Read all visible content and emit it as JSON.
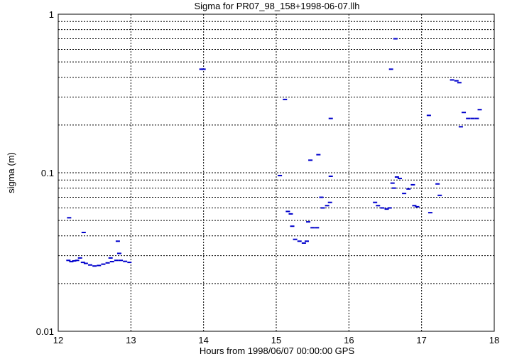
{
  "chart_data": {
    "type": "scatter",
    "title": "Sigma for PR07_98_158+1998-06-07.llh",
    "xlabel": "Hours from 1998/06/07 00:00:00 GPS",
    "ylabel": "sigma (m)",
    "xlim": [
      12,
      18
    ],
    "ylim": [
      0.01,
      1
    ],
    "yscale": "log",
    "grid": true,
    "x_ticks": [
      "12",
      "13",
      "14",
      "15",
      "16",
      "17",
      "18"
    ],
    "y_ticks": [
      "0.01",
      "0.1",
      "1"
    ],
    "colors": {
      "series": "#0000cc",
      "grid": "#000000",
      "axes": "#000000"
    },
    "series": [
      {
        "points": [
          [
            12.14,
            0.028
          ],
          [
            12.18,
            0.0275
          ],
          [
            12.22,
            0.0278
          ],
          [
            12.26,
            0.028
          ],
          [
            12.3,
            0.029
          ],
          [
            12.34,
            0.0272
          ],
          [
            12.38,
            0.0268
          ],
          [
            12.44,
            0.0262
          ],
          [
            12.5,
            0.0258
          ],
          [
            12.56,
            0.026
          ],
          [
            12.62,
            0.0265
          ],
          [
            12.68,
            0.027
          ],
          [
            12.74,
            0.0275
          ],
          [
            12.8,
            0.028
          ],
          [
            12.86,
            0.028
          ],
          [
            12.92,
            0.0276
          ],
          [
            12.98,
            0.0272
          ],
          [
            12.35,
            0.042
          ],
          [
            12.15,
            0.052
          ],
          [
            12.82,
            0.037
          ],
          [
            12.84,
            0.031
          ],
          [
            12.72,
            0.029
          ],
          [
            13.97,
            0.45
          ],
          [
            14.0,
            0.45
          ],
          [
            15.05,
            0.096
          ],
          [
            15.12,
            0.29
          ],
          [
            15.16,
            0.057
          ],
          [
            15.2,
            0.055
          ],
          [
            15.22,
            0.046
          ],
          [
            15.26,
            0.038
          ],
          [
            15.32,
            0.037
          ],
          [
            15.38,
            0.036
          ],
          [
            15.42,
            0.037
          ],
          [
            15.44,
            0.049
          ],
          [
            15.5,
            0.045
          ],
          [
            15.56,
            0.045
          ],
          [
            15.58,
            0.13
          ],
          [
            15.62,
            0.07
          ],
          [
            15.64,
            0.06
          ],
          [
            15.7,
            0.062
          ],
          [
            15.74,
            0.065
          ],
          [
            15.75,
            0.095
          ],
          [
            15.75,
            0.22
          ],
          [
            15.47,
            0.12
          ],
          [
            16.36,
            0.065
          ],
          [
            16.4,
            0.062
          ],
          [
            16.46,
            0.06
          ],
          [
            16.52,
            0.059
          ],
          [
            16.56,
            0.06
          ],
          [
            16.58,
            0.45
          ],
          [
            16.6,
            0.086
          ],
          [
            16.62,
            0.08
          ],
          [
            16.64,
            0.7
          ],
          [
            16.66,
            0.094
          ],
          [
            16.7,
            0.092
          ],
          [
            16.76,
            0.074
          ],
          [
            16.82,
            0.079
          ],
          [
            16.88,
            0.084
          ],
          [
            16.9,
            0.062
          ],
          [
            16.94,
            0.061
          ],
          [
            17.1,
            0.23
          ],
          [
            17.12,
            0.056
          ],
          [
            17.22,
            0.085
          ],
          [
            17.25,
            0.072
          ],
          [
            17.42,
            0.385
          ],
          [
            17.48,
            0.38
          ],
          [
            17.52,
            0.37
          ],
          [
            17.54,
            0.195
          ],
          [
            17.58,
            0.24
          ],
          [
            17.64,
            0.22
          ],
          [
            17.7,
            0.22
          ],
          [
            17.76,
            0.22
          ],
          [
            17.8,
            0.25
          ]
        ]
      }
    ]
  }
}
